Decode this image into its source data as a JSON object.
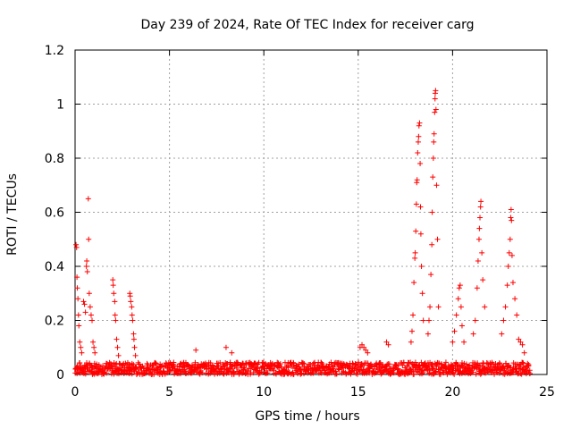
{
  "chart_data": {
    "type": "scatter",
    "title": "Day 239 of 2024, Rate Of TEC Index for receiver carg",
    "xlabel": "GPS time / hours",
    "ylabel": "ROTI / TECUs",
    "xlim": [
      0,
      25
    ],
    "ylim": [
      0,
      1.2
    ],
    "xticks": [
      0,
      5,
      10,
      15,
      20,
      25
    ],
    "yticks": [
      0,
      0.2,
      0.4,
      0.6,
      0.8,
      1,
      1.2
    ],
    "xtick_labels": [
      "0",
      "5",
      "10",
      "15",
      "20",
      "25"
    ],
    "ytick_labels": [
      "0",
      "0.2",
      "0.4",
      "0.6",
      "0.8",
      "1",
      "1.2"
    ],
    "grid": true,
    "marker": "+",
    "color": "#ff0000",
    "baseline": {
      "x_range": [
        0,
        24.1
      ],
      "y_range": [
        0.0,
        0.045
      ]
    },
    "series": [
      {
        "name": "ROTI",
        "points": [
          [
            0.05,
            0.48
          ],
          [
            0.08,
            0.47
          ],
          [
            0.1,
            0.36
          ],
          [
            0.12,
            0.32
          ],
          [
            0.15,
            0.28
          ],
          [
            0.18,
            0.22
          ],
          [
            0.2,
            0.18
          ],
          [
            0.25,
            0.12
          ],
          [
            0.3,
            0.1
          ],
          [
            0.35,
            0.08
          ],
          [
            0.45,
            0.27
          ],
          [
            0.5,
            0.26
          ],
          [
            0.55,
            0.23
          ],
          [
            0.6,
            0.4
          ],
          [
            0.62,
            0.42
          ],
          [
            0.65,
            0.38
          ],
          [
            0.7,
            0.65
          ],
          [
            0.72,
            0.5
          ],
          [
            0.75,
            0.3
          ],
          [
            0.8,
            0.25
          ],
          [
            0.85,
            0.22
          ],
          [
            0.9,
            0.2
          ],
          [
            0.95,
            0.12
          ],
          [
            1.0,
            0.1
          ],
          [
            1.05,
            0.08
          ],
          [
            2.0,
            0.35
          ],
          [
            2.02,
            0.33
          ],
          [
            2.05,
            0.3
          ],
          [
            2.1,
            0.27
          ],
          [
            2.12,
            0.22
          ],
          [
            2.15,
            0.2
          ],
          [
            2.2,
            0.13
          ],
          [
            2.25,
            0.1
          ],
          [
            2.3,
            0.07
          ],
          [
            2.9,
            0.3
          ],
          [
            2.92,
            0.29
          ],
          [
            2.95,
            0.27
          ],
          [
            3.0,
            0.25
          ],
          [
            3.02,
            0.22
          ],
          [
            3.05,
            0.2
          ],
          [
            3.1,
            0.15
          ],
          [
            3.12,
            0.13
          ],
          [
            3.15,
            0.1
          ],
          [
            3.2,
            0.07
          ],
          [
            6.4,
            0.09
          ],
          [
            8.0,
            0.1
          ],
          [
            8.3,
            0.08
          ],
          [
            15.1,
            0.1
          ],
          [
            15.2,
            0.11
          ],
          [
            15.3,
            0.1
          ],
          [
            15.4,
            0.09
          ],
          [
            15.5,
            0.08
          ],
          [
            16.5,
            0.12
          ],
          [
            16.6,
            0.11
          ],
          [
            17.8,
            0.12
          ],
          [
            17.85,
            0.16
          ],
          [
            17.9,
            0.22
          ],
          [
            17.95,
            0.34
          ],
          [
            18.0,
            0.43
          ],
          [
            18.02,
            0.45
          ],
          [
            18.05,
            0.53
          ],
          [
            18.08,
            0.63
          ],
          [
            18.1,
            0.71
          ],
          [
            18.12,
            0.72
          ],
          [
            18.15,
            0.82
          ],
          [
            18.18,
            0.86
          ],
          [
            18.2,
            0.88
          ],
          [
            18.22,
            0.92
          ],
          [
            18.25,
            0.93
          ],
          [
            18.28,
            0.78
          ],
          [
            18.3,
            0.62
          ],
          [
            18.32,
            0.52
          ],
          [
            18.35,
            0.4
          ],
          [
            18.4,
            0.3
          ],
          [
            18.45,
            0.2
          ],
          [
            18.7,
            0.15
          ],
          [
            18.75,
            0.2
          ],
          [
            18.8,
            0.25
          ],
          [
            18.85,
            0.37
          ],
          [
            18.9,
            0.48
          ],
          [
            18.92,
            0.6
          ],
          [
            18.95,
            0.73
          ],
          [
            18.98,
            0.8
          ],
          [
            19.0,
            0.86
          ],
          [
            19.02,
            0.89
          ],
          [
            19.05,
            0.97
          ],
          [
            19.07,
            1.02
          ],
          [
            19.08,
            1.04
          ],
          [
            19.1,
            1.05
          ],
          [
            19.12,
            0.98
          ],
          [
            19.15,
            0.7
          ],
          [
            19.2,
            0.5
          ],
          [
            19.25,
            0.25
          ],
          [
            20.0,
            0.12
          ],
          [
            20.1,
            0.16
          ],
          [
            20.2,
            0.22
          ],
          [
            20.3,
            0.28
          ],
          [
            20.35,
            0.32
          ],
          [
            20.4,
            0.33
          ],
          [
            20.45,
            0.25
          ],
          [
            20.5,
            0.18
          ],
          [
            20.6,
            0.12
          ],
          [
            21.1,
            0.15
          ],
          [
            21.2,
            0.2
          ],
          [
            21.3,
            0.32
          ],
          [
            21.35,
            0.42
          ],
          [
            21.4,
            0.5
          ],
          [
            21.42,
            0.54
          ],
          [
            21.45,
            0.58
          ],
          [
            21.48,
            0.62
          ],
          [
            21.5,
            0.64
          ],
          [
            21.55,
            0.45
          ],
          [
            21.6,
            0.35
          ],
          [
            21.7,
            0.25
          ],
          [
            22.6,
            0.15
          ],
          [
            22.7,
            0.2
          ],
          [
            22.8,
            0.25
          ],
          [
            22.9,
            0.33
          ],
          [
            22.95,
            0.4
          ],
          [
            23.0,
            0.45
          ],
          [
            23.05,
            0.5
          ],
          [
            23.08,
            0.58
          ],
          [
            23.1,
            0.61
          ],
          [
            23.12,
            0.57
          ],
          [
            23.15,
            0.44
          ],
          [
            23.2,
            0.34
          ],
          [
            23.3,
            0.28
          ],
          [
            23.4,
            0.22
          ],
          [
            23.5,
            0.13
          ],
          [
            23.6,
            0.12
          ],
          [
            23.7,
            0.11
          ],
          [
            23.8,
            0.08
          ]
        ]
      }
    ]
  }
}
